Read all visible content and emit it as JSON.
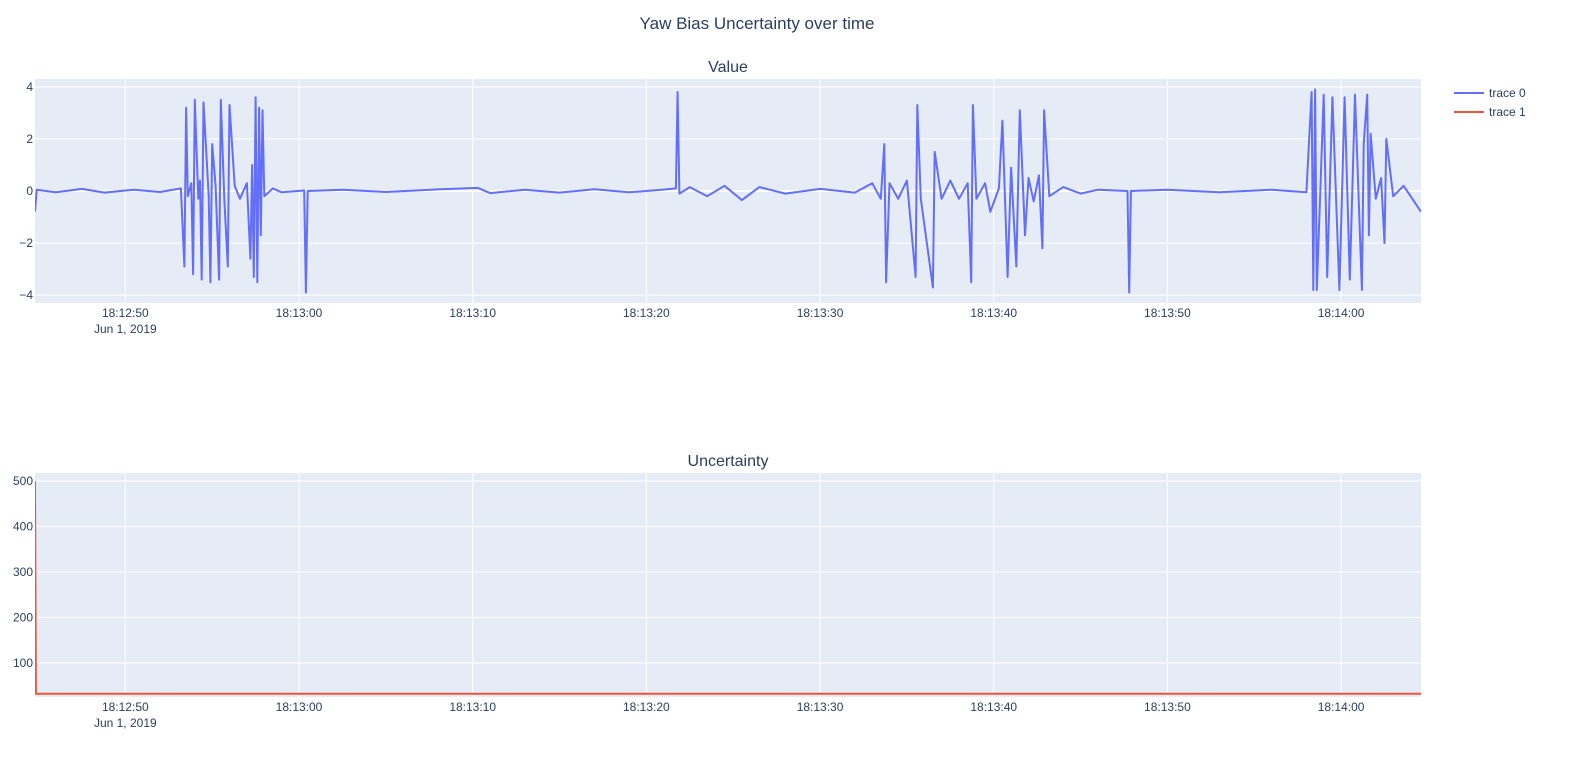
{
  "figure": {
    "title": "Yaw Bias Uncertainty over time",
    "colors": {
      "plot_bg": "#e5ecf6",
      "grid": "#ffffff",
      "text": "#2a3f5f",
      "trace0": "#636efa",
      "trace1": "#ef553b"
    }
  },
  "legend": {
    "placement": "top-right-outside",
    "items": [
      {
        "label": "trace 0",
        "color": "#636efa"
      },
      {
        "label": "trace 1",
        "color": "#ef553b"
      }
    ]
  },
  "chart_data": [
    {
      "type": "line",
      "title": "Value",
      "xlabel": "",
      "ylabel": "",
      "xlim": [
        "2019-06-01 18:12:44.8",
        "2019-06-01 18:14:04.6"
      ],
      "ylim": [
        -4.3,
        4.3
      ],
      "yticks": [
        -4,
        -2,
        0,
        2,
        4
      ],
      "ytick_labels": [
        "−4",
        "−2",
        "0",
        "2",
        "4"
      ],
      "xtick_labels": [
        "18:12:50",
        "18:13:00",
        "18:13:10",
        "18:13:20",
        "18:13:30",
        "18:13:40",
        "18:13:50",
        "18:14:00"
      ],
      "xtick_secondary": "Jun 1, 2019",
      "grid": true,
      "series": [
        {
          "name": "trace 0",
          "color": "#636efa",
          "points": [
            [
              "2019-06-01 18:12:44.8",
              -0.8
            ],
            [
              "2019-06-01 18:12:44.9",
              0.05
            ],
            [
              "2019-06-01 18:12:46.0",
              -0.05
            ],
            [
              "2019-06-01 18:12:47.5",
              0.08
            ],
            [
              "2019-06-01 18:12:48.8",
              -0.06
            ],
            [
              "2019-06-01 18:12:50.5",
              0.05
            ],
            [
              "2019-06-01 18:12:52.0",
              -0.04
            ],
            [
              "2019-06-01 18:12:53.2",
              0.1
            ],
            [
              "2019-06-01 18:12:53.4",
              -2.9
            ],
            [
              "2019-06-01 18:12:53.5",
              3.2
            ],
            [
              "2019-06-01 18:12:53.6",
              -0.2
            ],
            [
              "2019-06-01 18:12:53.8",
              0.3
            ],
            [
              "2019-06-01 18:12:53.9",
              -3.2
            ],
            [
              "2019-06-01 18:12:54.0",
              3.5
            ],
            [
              "2019-06-01 18:12:54.2",
              -0.3
            ],
            [
              "2019-06-01 18:12:54.3",
              0.4
            ],
            [
              "2019-06-01 18:12:54.4",
              -3.4
            ],
            [
              "2019-06-01 18:12:54.5",
              3.4
            ],
            [
              "2019-06-01 18:12:54.8",
              -0.2
            ],
            [
              "2019-06-01 18:12:54.9",
              -3.5
            ],
            [
              "2019-06-01 18:12:55.0",
              1.8
            ],
            [
              "2019-06-01 18:12:55.2",
              0.2
            ],
            [
              "2019-06-01 18:12:55.4",
              -3.4
            ],
            [
              "2019-06-01 18:12:55.5",
              3.5
            ],
            [
              "2019-06-01 18:12:55.7",
              -0.3
            ],
            [
              "2019-06-01 18:12:55.9",
              -2.9
            ],
            [
              "2019-06-01 18:12:56.0",
              3.3
            ],
            [
              "2019-06-01 18:12:56.3",
              0.2
            ],
            [
              "2019-06-01 18:12:56.6",
              -0.3
            ],
            [
              "2019-06-01 18:12:57.0",
              0.3
            ],
            [
              "2019-06-01 18:12:57.2",
              -2.6
            ],
            [
              "2019-06-01 18:12:57.3",
              1.0
            ],
            [
              "2019-06-01 18:12:57.4",
              -3.3
            ],
            [
              "2019-06-01 18:12:57.5",
              3.6
            ],
            [
              "2019-06-01 18:12:57.6",
              -3.5
            ],
            [
              "2019-06-01 18:12:57.7",
              3.2
            ],
            [
              "2019-06-01 18:12:57.8",
              -1.7
            ],
            [
              "2019-06-01 18:12:57.9",
              3.1
            ],
            [
              "2019-06-01 18:12:58.0",
              -0.2
            ],
            [
              "2019-06-01 18:12:58.5",
              0.1
            ],
            [
              "2019-06-01 18:12:59.0",
              -0.05
            ],
            [
              "2019-06-01 18:13:00.3",
              0.02
            ],
            [
              "2019-06-01 18:13:00.4",
              -3.9
            ],
            [
              "2019-06-01 18:13:00.5",
              0.0
            ],
            [
              "2019-06-01 18:13:02.5",
              0.05
            ],
            [
              "2019-06-01 18:13:05.0",
              -0.04
            ],
            [
              "2019-06-01 18:13:08.0",
              0.06
            ],
            [
              "2019-06-01 18:13:10.3",
              0.12
            ],
            [
              "2019-06-01 18:13:11.0",
              -0.08
            ],
            [
              "2019-06-01 18:13:13.0",
              0.05
            ],
            [
              "2019-06-01 18:13:15.0",
              -0.06
            ],
            [
              "2019-06-01 18:13:17.0",
              0.07
            ],
            [
              "2019-06-01 18:13:19.0",
              -0.05
            ],
            [
              "2019-06-01 18:13:20.9",
              0.05
            ],
            [
              "2019-06-01 18:13:21.7",
              0.1
            ],
            [
              "2019-06-01 18:13:21.8",
              3.8
            ],
            [
              "2019-06-01 18:13:21.9",
              -0.1
            ],
            [
              "2019-06-01 18:13:22.5",
              0.15
            ],
            [
              "2019-06-01 18:13:23.5",
              -0.2
            ],
            [
              "2019-06-01 18:13:24.5",
              0.2
            ],
            [
              "2019-06-01 18:13:25.5",
              -0.35
            ],
            [
              "2019-06-01 18:13:26.5",
              0.15
            ],
            [
              "2019-06-01 18:13:28.0",
              -0.1
            ],
            [
              "2019-06-01 18:13:30.0",
              0.08
            ],
            [
              "2019-06-01 18:13:32.0",
              -0.06
            ],
            [
              "2019-06-01 18:13:33.0",
              0.3
            ],
            [
              "2019-06-01 18:13:33.5",
              -0.3
            ],
            [
              "2019-06-01 18:13:33.7",
              1.8
            ],
            [
              "2019-06-01 18:13:33.8",
              -3.5
            ],
            [
              "2019-06-01 18:13:34.0",
              0.3
            ],
            [
              "2019-06-01 18:13:34.5",
              -0.3
            ],
            [
              "2019-06-01 18:13:35.0",
              0.4
            ],
            [
              "2019-06-01 18:13:35.5",
              -3.3
            ],
            [
              "2019-06-01 18:13:35.6",
              3.3
            ],
            [
              "2019-06-01 18:13:35.8",
              -0.3
            ],
            [
              "2019-06-01 18:13:36.5",
              -3.7
            ],
            [
              "2019-06-01 18:13:36.6",
              1.5
            ],
            [
              "2019-06-01 18:13:37.0",
              -0.3
            ],
            [
              "2019-06-01 18:13:37.5",
              0.4
            ],
            [
              "2019-06-01 18:13:38.0",
              -0.3
            ],
            [
              "2019-06-01 18:13:38.5",
              0.3
            ],
            [
              "2019-06-01 18:13:38.7",
              -3.5
            ],
            [
              "2019-06-01 18:13:38.8",
              3.3
            ],
            [
              "2019-06-01 18:13:39.0",
              -0.3
            ],
            [
              "2019-06-01 18:13:39.5",
              0.3
            ],
            [
              "2019-06-01 18:13:39.8",
              -0.8
            ],
            [
              "2019-06-01 18:13:40.3",
              0.1
            ],
            [
              "2019-06-01 18:13:40.5",
              2.7
            ],
            [
              "2019-06-01 18:13:40.8",
              -3.3
            ],
            [
              "2019-06-01 18:13:41.0",
              0.9
            ],
            [
              "2019-06-01 18:13:41.3",
              -2.9
            ],
            [
              "2019-06-01 18:13:41.5",
              3.1
            ],
            [
              "2019-06-01 18:13:41.8",
              -1.7
            ],
            [
              "2019-06-01 18:13:42.0",
              0.5
            ],
            [
              "2019-06-01 18:13:42.3",
              -0.4
            ],
            [
              "2019-06-01 18:13:42.6",
              0.6
            ],
            [
              "2019-06-01 18:13:42.8",
              -2.2
            ],
            [
              "2019-06-01 18:13:42.9",
              3.1
            ],
            [
              "2019-06-01 18:13:43.2",
              -0.2
            ],
            [
              "2019-06-01 18:13:44.0",
              0.15
            ],
            [
              "2019-06-01 18:13:45.0",
              -0.1
            ],
            [
              "2019-06-01 18:13:46.0",
              0.05
            ],
            [
              "2019-06-01 18:13:47.7",
              0.0
            ],
            [
              "2019-06-01 18:13:47.8",
              -3.9
            ],
            [
              "2019-06-01 18:13:47.9",
              0.0
            ],
            [
              "2019-06-01 18:13:50.0",
              0.05
            ],
            [
              "2019-06-01 18:13:53.0",
              -0.05
            ],
            [
              "2019-06-01 18:13:56.0",
              0.05
            ],
            [
              "2019-06-01 18:13:58.0",
              -0.05
            ],
            [
              "2019-06-01 18:13:58.3",
              3.8
            ],
            [
              "2019-06-01 18:13:58.4",
              -3.8
            ],
            [
              "2019-06-01 18:13:58.5",
              3.9
            ],
            [
              "2019-06-01 18:13:58.6",
              -3.8
            ],
            [
              "2019-06-01 18:13:59.0",
              3.7
            ],
            [
              "2019-06-01 18:13:59.2",
              -3.3
            ],
            [
              "2019-06-01 18:13:59.5",
              3.6
            ],
            [
              "2019-06-01 18:13:59.9",
              -3.8
            ],
            [
              "2019-06-01 18:14:00.2",
              3.6
            ],
            [
              "2019-06-01 18:14:00.5",
              -3.4
            ],
            [
              "2019-06-01 18:14:00.8",
              3.7
            ],
            [
              "2019-06-01 18:14:01.2",
              -3.8
            ],
            [
              "2019-06-01 18:14:01.3",
              1.8
            ],
            [
              "2019-06-01 18:14:01.5",
              3.7
            ],
            [
              "2019-06-01 18:14:01.6",
              -1.7
            ],
            [
              "2019-06-01 18:14:01.7",
              2.2
            ],
            [
              "2019-06-01 18:14:02.0",
              -0.3
            ],
            [
              "2019-06-01 18:14:02.3",
              0.5
            ],
            [
              "2019-06-01 18:14:02.5",
              -2.0
            ],
            [
              "2019-06-01 18:14:02.6",
              2.0
            ],
            [
              "2019-06-01 18:14:03.0",
              -0.2
            ],
            [
              "2019-06-01 18:14:03.6",
              0.2
            ],
            [
              "2019-06-01 18:14:04.0",
              -0.2
            ],
            [
              "2019-06-01 18:14:04.6",
              -0.8
            ]
          ]
        }
      ]
    },
    {
      "type": "line",
      "title": "Uncertainty",
      "xlabel": "",
      "ylabel": "",
      "xlim": [
        "2019-06-01 18:12:44.8",
        "2019-06-01 18:14:04.6"
      ],
      "ylim": [
        25,
        518
      ],
      "yticks": [
        100,
        200,
        300,
        400,
        500
      ],
      "ytick_labels": [
        "100",
        "200",
        "300",
        "400",
        "500"
      ],
      "xtick_labels": [
        "18:12:50",
        "18:13:00",
        "18:13:10",
        "18:13:20",
        "18:13:30",
        "18:13:40",
        "18:13:50",
        "18:14:00"
      ],
      "xtick_secondary": "Jun 1, 2019",
      "grid": true,
      "series": [
        {
          "name": "trace 1",
          "color": "#ef553b",
          "points": [
            [
              "2019-06-01 18:12:44.8",
              500
            ],
            [
              "2019-06-01 18:12:44.85",
              32
            ],
            [
              "2019-06-01 18:14:04.6",
              32
            ]
          ]
        }
      ]
    }
  ]
}
